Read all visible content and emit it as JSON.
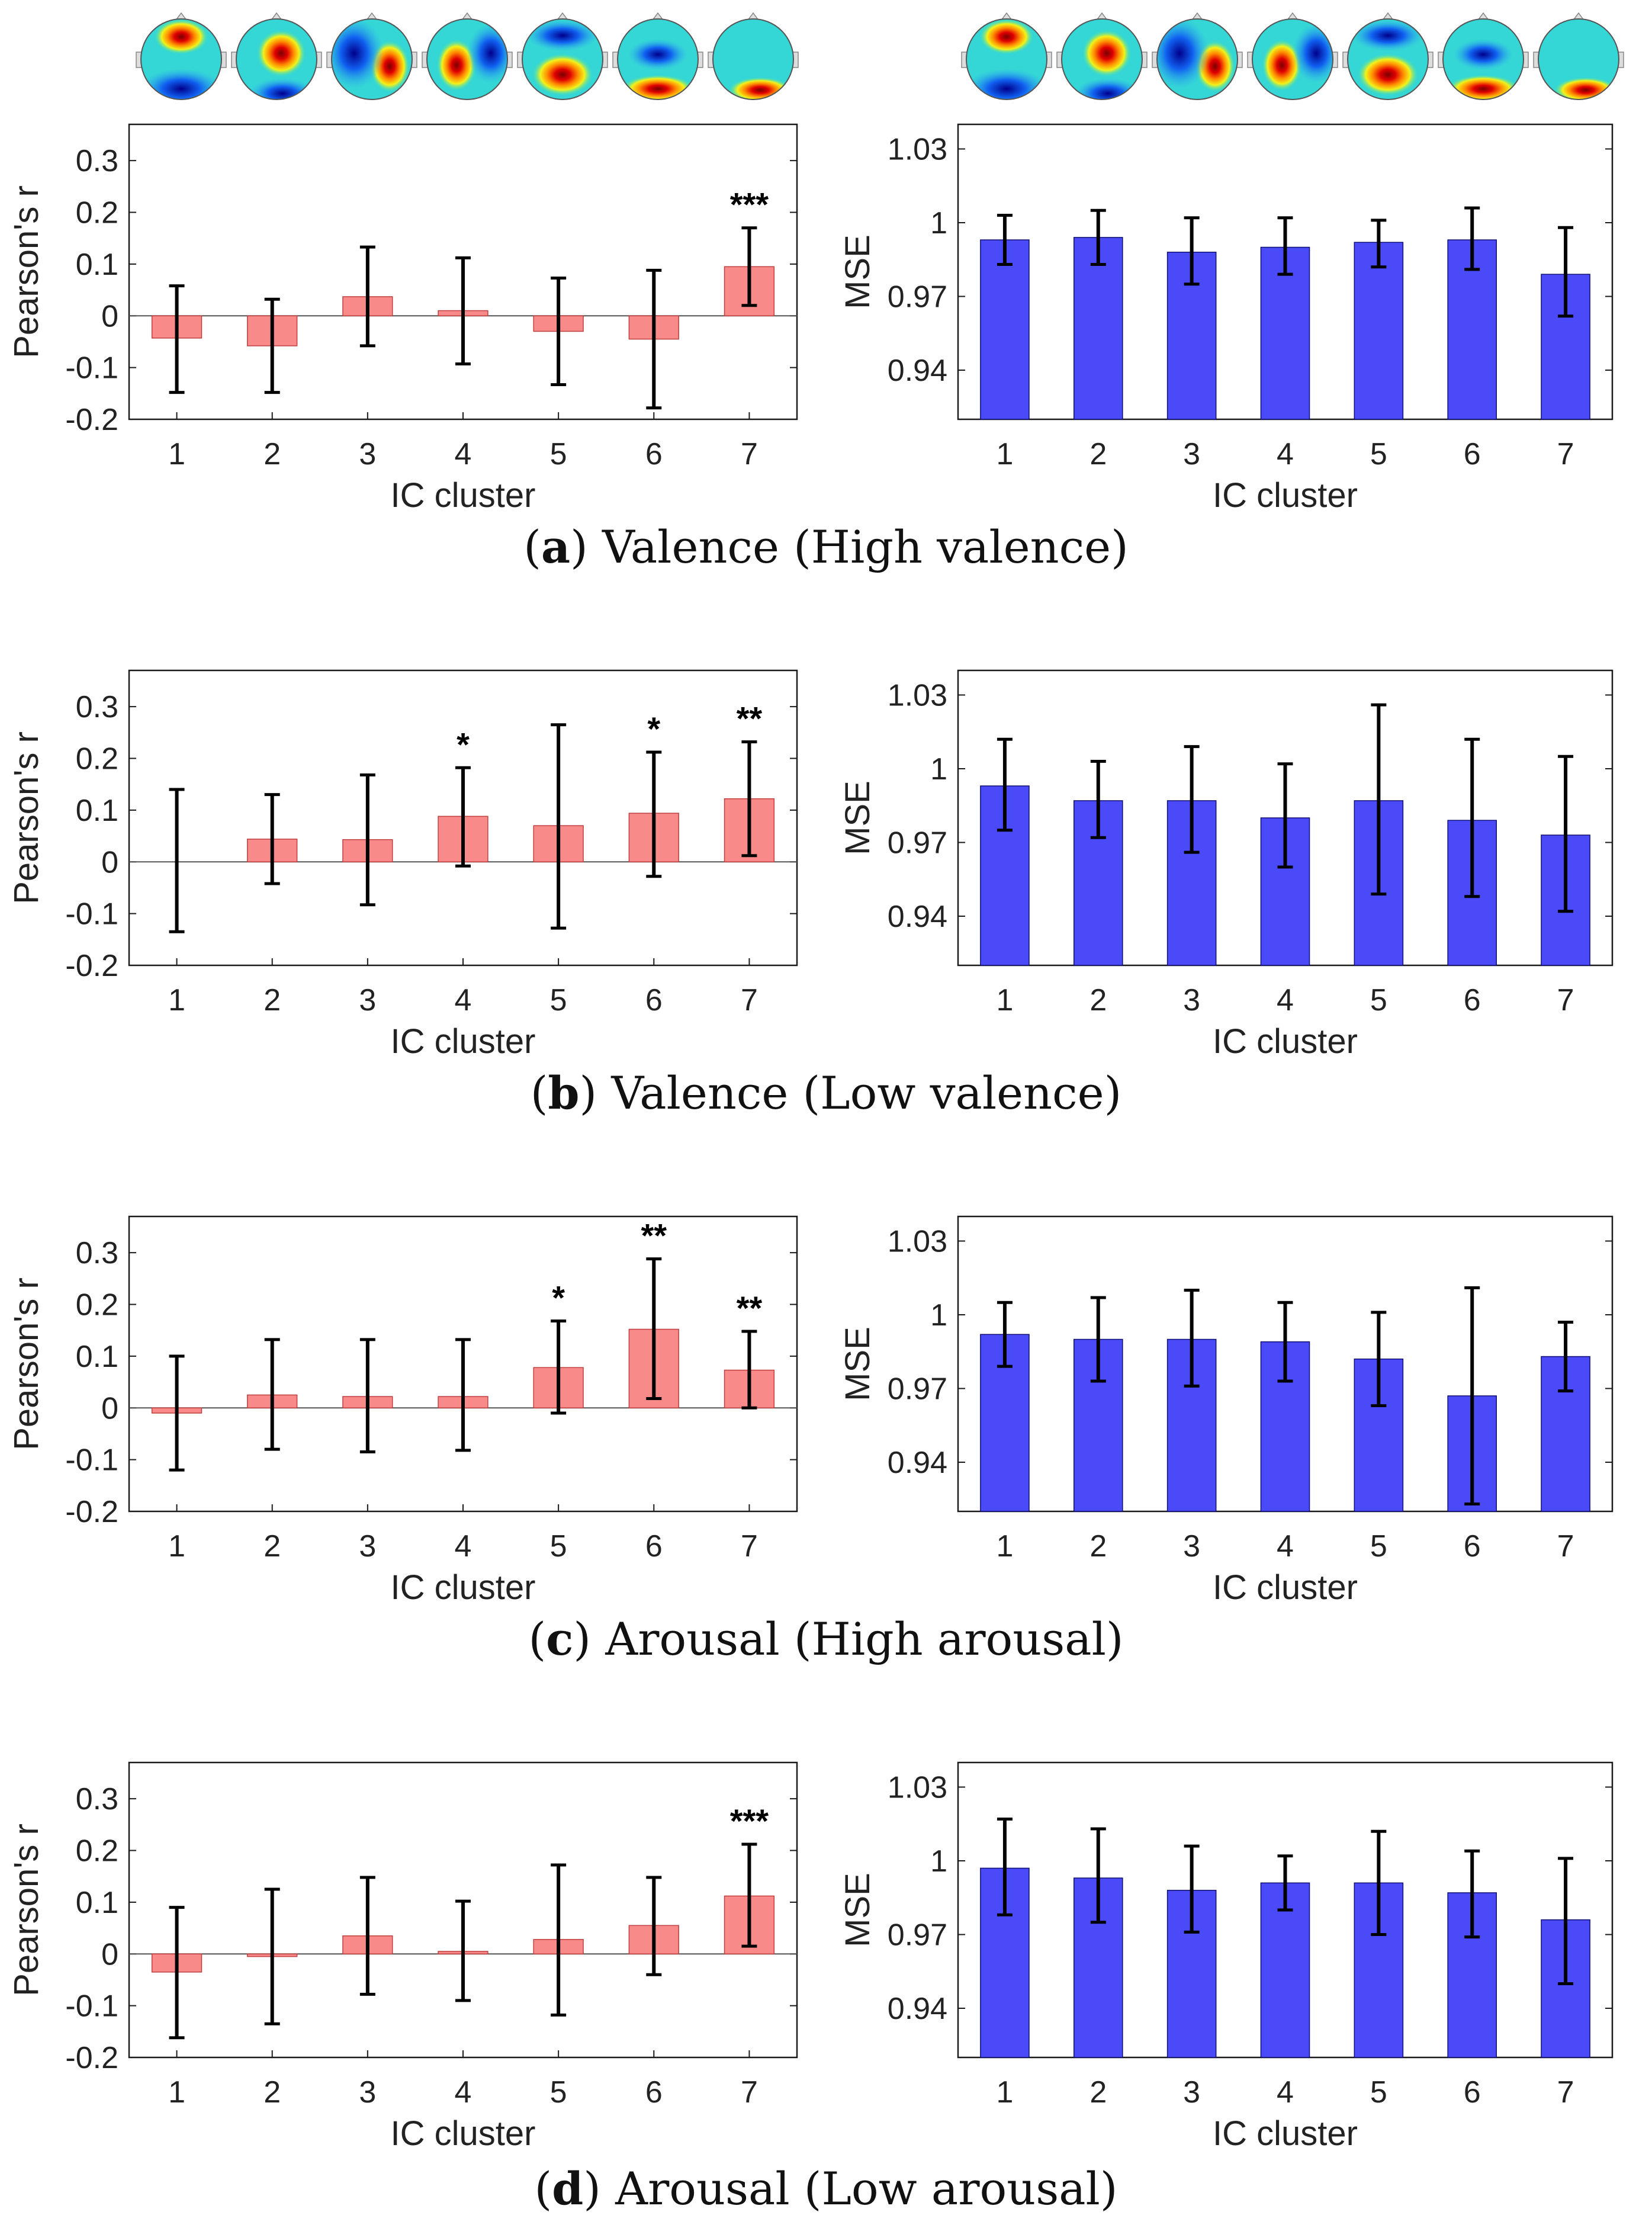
{
  "colors": {
    "corr_bar": "#F88A8A",
    "corr_bar_edge": "#C04040",
    "mse_bar": "#4A4AF8",
    "mse_bar_edge": "#101070",
    "error_bar": "#000000",
    "axis": "#1a1a1a",
    "tick_label": "#222222",
    "caption": "#111111"
  },
  "icons": [
    "scalp-map-icon"
  ],
  "chart_data": [
    {
      "type": "bar",
      "panel": "a",
      "side": "left",
      "categories": [
        "1",
        "2",
        "3",
        "4",
        "5",
        "6",
        "7"
      ],
      "values": [
        -0.043,
        -0.058,
        0.037,
        0.01,
        -0.03,
        -0.045,
        0.095
      ],
      "error_low": [
        -0.148,
        -0.148,
        -0.058,
        -0.093,
        -0.133,
        -0.178,
        0.02
      ],
      "error_high": [
        0.058,
        0.032,
        0.133,
        0.112,
        0.073,
        0.088,
        0.17
      ],
      "significance": [
        "",
        "",
        "",
        "",
        "",
        "",
        "***"
      ],
      "xlabel": "IC cluster",
      "ylabel": "Pearson's r",
      "ylim": [
        -0.2,
        0.37
      ],
      "yticks": [
        -0.2,
        -0.1,
        0,
        0.1,
        0.2,
        0.3
      ],
      "ytick_labels": [
        "-0.2",
        "-0.1",
        "0",
        "0.1",
        "0.2",
        "0.3"
      ]
    },
    {
      "type": "bar",
      "panel": "a",
      "side": "right",
      "categories": [
        "1",
        "2",
        "3",
        "4",
        "5",
        "6",
        "7"
      ],
      "values": [
        0.993,
        0.994,
        0.988,
        0.99,
        0.992,
        0.993,
        0.979
      ],
      "error_low": [
        0.983,
        0.983,
        0.975,
        0.979,
        0.982,
        0.981,
        0.962
      ],
      "error_high": [
        1.003,
        1.005,
        1.002,
        1.002,
        1.001,
        1.006,
        0.998
      ],
      "significance": [
        "",
        "",
        "",
        "",
        "",
        "",
        ""
      ],
      "xlabel": "IC cluster",
      "ylabel": "MSE",
      "ylim": [
        0.92,
        1.04
      ],
      "yticks": [
        0.94,
        0.97,
        1.0,
        1.03
      ],
      "ytick_labels": [
        "0.94",
        "0.97",
        "1",
        "1.03"
      ]
    },
    {
      "type": "bar",
      "panel": "b",
      "side": "left",
      "categories": [
        "1",
        "2",
        "3",
        "4",
        "5",
        "6",
        "7"
      ],
      "values": [
        0.0,
        0.044,
        0.043,
        0.088,
        0.07,
        0.094,
        0.122
      ],
      "error_low": [
        -0.135,
        -0.042,
        -0.083,
        -0.008,
        -0.128,
        -0.028,
        0.012
      ],
      "error_high": [
        0.14,
        0.13,
        0.168,
        0.182,
        0.265,
        0.212,
        0.232
      ],
      "significance": [
        "",
        "",
        "",
        "*",
        "",
        "*",
        "**"
      ],
      "xlabel": "IC cluster",
      "ylabel": "Pearson's r",
      "ylim": [
        -0.2,
        0.37
      ],
      "yticks": [
        -0.2,
        -0.1,
        0,
        0.1,
        0.2,
        0.3
      ],
      "ytick_labels": [
        "-0.2",
        "-0.1",
        "0",
        "0.1",
        "0.2",
        "0.3"
      ]
    },
    {
      "type": "bar",
      "panel": "b",
      "side": "right",
      "categories": [
        "1",
        "2",
        "3",
        "4",
        "5",
        "6",
        "7"
      ],
      "values": [
        0.993,
        0.987,
        0.987,
        0.98,
        0.987,
        0.979,
        0.973
      ],
      "error_low": [
        0.975,
        0.972,
        0.966,
        0.96,
        0.949,
        0.948,
        0.942
      ],
      "error_high": [
        1.012,
        1.003,
        1.009,
        1.002,
        1.026,
        1.012,
        1.005
      ],
      "significance": [
        "",
        "",
        "",
        "",
        "",
        "",
        ""
      ],
      "xlabel": "IC cluster",
      "ylabel": "MSE",
      "ylim": [
        0.92,
        1.04
      ],
      "yticks": [
        0.94,
        0.97,
        1.0,
        1.03
      ],
      "ytick_labels": [
        "0.94",
        "0.97",
        "1",
        "1.03"
      ]
    },
    {
      "type": "bar",
      "panel": "c",
      "side": "left",
      "categories": [
        "1",
        "2",
        "3",
        "4",
        "5",
        "6",
        "7"
      ],
      "values": [
        -0.01,
        0.025,
        0.022,
        0.022,
        0.078,
        0.152,
        0.073
      ],
      "error_low": [
        -0.12,
        -0.08,
        -0.085,
        -0.082,
        -0.01,
        0.018,
        0.0
      ],
      "error_high": [
        0.1,
        0.132,
        0.132,
        0.132,
        0.168,
        0.288,
        0.148
      ],
      "significance": [
        "",
        "",
        "",
        "",
        "*",
        "**",
        "**"
      ],
      "xlabel": "IC cluster",
      "ylabel": "Pearson's r",
      "ylim": [
        -0.2,
        0.37
      ],
      "yticks": [
        -0.2,
        -0.1,
        0,
        0.1,
        0.2,
        0.3
      ],
      "ytick_labels": [
        "-0.2",
        "-0.1",
        "0",
        "0.1",
        "0.2",
        "0.3"
      ]
    },
    {
      "type": "bar",
      "panel": "c",
      "side": "right",
      "categories": [
        "1",
        "2",
        "3",
        "4",
        "5",
        "6",
        "7"
      ],
      "values": [
        0.992,
        0.99,
        0.99,
        0.989,
        0.982,
        0.967,
        0.983
      ],
      "error_low": [
        0.979,
        0.973,
        0.971,
        0.973,
        0.963,
        0.923,
        0.969
      ],
      "error_high": [
        1.005,
        1.007,
        1.01,
        1.005,
        1.001,
        1.011,
        0.997
      ],
      "significance": [
        "",
        "",
        "",
        "",
        "",
        "",
        ""
      ],
      "xlabel": "IC cluster",
      "ylabel": "MSE",
      "ylim": [
        0.92,
        1.04
      ],
      "yticks": [
        0.94,
        0.97,
        1.0,
        1.03
      ],
      "ytick_labels": [
        "0.94",
        "0.97",
        "1",
        "1.03"
      ]
    },
    {
      "type": "bar",
      "panel": "d",
      "side": "left",
      "categories": [
        "1",
        "2",
        "3",
        "4",
        "5",
        "6",
        "7"
      ],
      "values": [
        -0.035,
        -0.005,
        0.035,
        0.005,
        0.028,
        0.055,
        0.112
      ],
      "error_low": [
        -0.162,
        -0.135,
        -0.078,
        -0.09,
        -0.118,
        -0.04,
        0.015
      ],
      "error_high": [
        0.09,
        0.125,
        0.148,
        0.102,
        0.172,
        0.148,
        0.212
      ],
      "significance": [
        "",
        "",
        "",
        "",
        "",
        "",
        "***"
      ],
      "xlabel": "IC cluster",
      "ylabel": "Pearson's r",
      "ylim": [
        -0.2,
        0.37
      ],
      "yticks": [
        -0.2,
        -0.1,
        0,
        0.1,
        0.2,
        0.3
      ],
      "ytick_labels": [
        "-0.2",
        "-0.1",
        "0",
        "0.1",
        "0.2",
        "0.3"
      ]
    },
    {
      "type": "bar",
      "panel": "d",
      "side": "right",
      "categories": [
        "1",
        "2",
        "3",
        "4",
        "5",
        "6",
        "7"
      ],
      "values": [
        0.997,
        0.993,
        0.988,
        0.991,
        0.991,
        0.987,
        0.976
      ],
      "error_low": [
        0.978,
        0.975,
        0.971,
        0.98,
        0.97,
        0.969,
        0.95
      ],
      "error_high": [
        1.017,
        1.013,
        1.006,
        1.002,
        1.012,
        1.004,
        1.001
      ],
      "significance": [
        "",
        "",
        "",
        "",
        "",
        "",
        ""
      ],
      "xlabel": "IC cluster",
      "ylabel": "MSE",
      "ylim": [
        0.92,
        1.04
      ],
      "yticks": [
        0.94,
        0.97,
        1.0,
        1.03
      ],
      "ytick_labels": [
        "0.94",
        "0.97",
        "1",
        "1.03"
      ]
    }
  ],
  "captions": [
    {
      "letter": "a",
      "open": "(",
      "close": ")",
      "text": " Valence (High valence)"
    },
    {
      "letter": "b",
      "open": "(",
      "close": ")",
      "text": " Valence (Low valence)"
    },
    {
      "letter": "c",
      "open": "(",
      "close": ")",
      "text": " Arousal (High arousal)"
    },
    {
      "letter": "d",
      "open": "(",
      "close": ")",
      "text": " Arousal (Low arousal)"
    }
  ]
}
